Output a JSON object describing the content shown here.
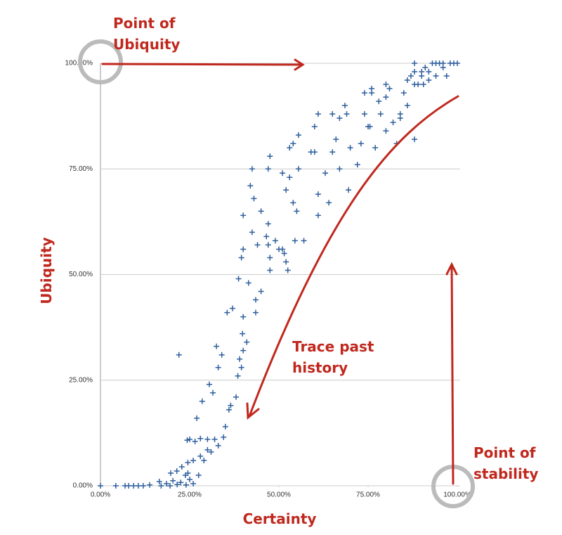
{
  "chart_data": {
    "type": "scatter",
    "x_label": "Certainty",
    "y_label": "Ubiquity",
    "annotations": [
      {
        "lines": [
          "Point of",
          "Ubiquity"
        ]
      },
      {
        "lines": [
          "Trace past",
          "history"
        ]
      },
      {
        "lines": [
          "Point of",
          "stability"
        ]
      }
    ],
    "xlim": [
      0,
      100
    ],
    "ylim": [
      0,
      100
    ],
    "xticks": [
      {
        "value": 0,
        "label": "0.00%"
      },
      {
        "value": 25,
        "label": "25.00%"
      },
      {
        "value": 50,
        "label": "50.00%"
      },
      {
        "value": 75,
        "label": "75.00%"
      },
      {
        "value": 100,
        "label": "100.00%"
      }
    ],
    "yticks": [
      {
        "value": 0,
        "label": "0.00%"
      },
      {
        "value": 25,
        "label": "25.00%"
      },
      {
        "value": 50,
        "label": "50.00%"
      },
      {
        "value": 75,
        "label": "75.00%"
      },
      {
        "value": 100,
        "label": "100.00%"
      }
    ],
    "grid": true,
    "color": "#2e5f9e",
    "x": [
      0,
      4.3,
      6.9,
      7.9,
      9.3,
      10.6,
      12,
      13.8,
      16.5,
      17,
      18.5,
      19.5,
      20.3,
      21.5,
      22.5,
      24,
      25,
      24.5,
      26,
      19.7,
      21.4,
      22.8,
      23.8,
      24.5,
      26,
      27.5,
      28,
      29,
      30,
      31,
      32,
      33,
      34.5,
      35,
      26.5,
      24.3,
      27,
      28.5,
      30.5,
      31.5,
      32.5,
      33,
      34,
      35.5,
      36,
      36.5,
      37,
      38,
      38.5,
      39,
      39.5,
      40,
      39.8,
      41,
      40,
      38.7,
      39.5,
      40,
      41.5,
      42.5,
      43.5,
      43.5,
      45,
      44,
      45,
      46.5,
      47,
      47.5,
      47.5,
      49,
      50,
      51,
      51.5,
      52,
      52.5,
      54.5,
      57,
      47,
      40,
      42,
      42.5,
      43,
      47.5,
      47,
      51,
      52,
      53,
      54,
      55,
      55.5,
      53,
      54,
      55.5,
      59,
      60,
      61,
      61,
      60,
      61,
      63,
      64,
      65,
      65,
      67,
      66,
      67,
      68.5,
      69,
      70,
      69.5,
      72,
      73,
      74,
      74,
      75,
      75.5,
      76,
      76,
      77,
      78,
      78.5,
      80,
      80,
      80,
      81,
      82,
      83,
      84,
      84,
      85,
      86,
      86,
      87,
      88,
      88,
      88,
      88,
      89,
      90,
      90,
      90.5,
      91,
      92,
      92,
      93,
      94,
      94,
      95,
      96,
      96,
      97,
      98,
      99,
      100,
      22,
      25,
      28,
      30
    ],
    "values": [
      0,
      0,
      0,
      0,
      0,
      0,
      0,
      0.2,
      1,
      0,
      0.5,
      0,
      1.2,
      0.3,
      0.8,
      0.2,
      1.5,
      3,
      0.5,
      3,
      3.5,
      4.5,
      2.5,
      5.5,
      6,
      2.5,
      7,
      6,
      8.5,
      8,
      11,
      9.5,
      11.5,
      14,
      10.5,
      10.8,
      16,
      20,
      24,
      22,
      33,
      28,
      31,
      41,
      18,
      19,
      42,
      21,
      26,
      30,
      28,
      32,
      36,
      34,
      40,
      49,
      54,
      56,
      48,
      60,
      44,
      41,
      46,
      57,
      65,
      59,
      57,
      54,
      51,
      58,
      56,
      56,
      55,
      53,
      51,
      58,
      58,
      62,
      64,
      71,
      75,
      68,
      78,
      75,
      74,
      70,
      73,
      67,
      65,
      75,
      80,
      81,
      83,
      79,
      79,
      64,
      69,
      85,
      88,
      74,
      67,
      79,
      88,
      87,
      82,
      75,
      90,
      88,
      80,
      70,
      76,
      81,
      93,
      88,
      85,
      85,
      93,
      94,
      80,
      91,
      88,
      95,
      92,
      84,
      94,
      86,
      81,
      87,
      88,
      93,
      96,
      90,
      97,
      100,
      98,
      95,
      82,
      95,
      97,
      98,
      95,
      99,
      98,
      96,
      100,
      97,
      100,
      100,
      100,
      99,
      97,
      100,
      100,
      100,
      31,
      11,
      11.2,
      11
    ]
  }
}
